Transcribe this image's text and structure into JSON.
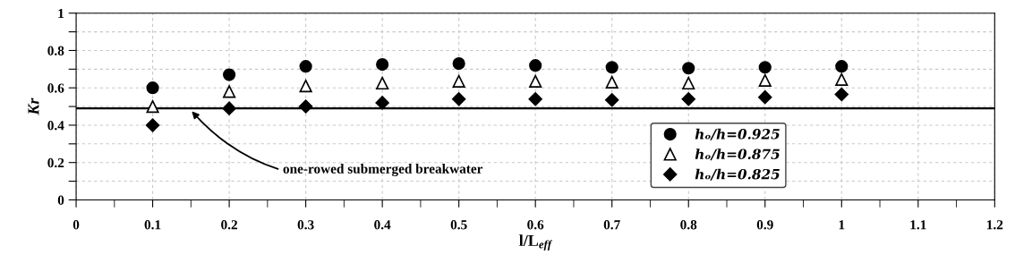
{
  "chart_data": {
    "type": "scatter",
    "xlabel": "l/L$_{eff}$",
    "ylabel": "Kr",
    "x": [
      0.1,
      0.2,
      0.3,
      0.4,
      0.5,
      0.6,
      0.7,
      0.8,
      0.9,
      1.0
    ],
    "series": [
      {
        "name": "hₒ/h=0.925",
        "color": "#000000",
        "marker": "circle",
        "values": [
          0.6,
          0.67,
          0.715,
          0.725,
          0.73,
          0.72,
          0.71,
          0.705,
          0.71,
          0.715
        ]
      },
      {
        "name": "hₒ/h=0.875",
        "color": "#000000",
        "marker": "triangle",
        "values": [
          0.5,
          0.58,
          0.61,
          0.625,
          0.635,
          0.635,
          0.63,
          0.625,
          0.64,
          0.645
        ]
      },
      {
        "name": "hₒ/h=0.825",
        "color": "#000000",
        "marker": "diamond",
        "values": [
          0.4,
          0.49,
          0.5,
          0.52,
          0.54,
          0.54,
          0.535,
          0.54,
          0.55,
          0.565
        ]
      }
    ],
    "xlim": [
      0,
      1.2
    ],
    "xticks": [
      0,
      0.1,
      0.2,
      0.3,
      0.4,
      0.5,
      0.6,
      0.7,
      0.8,
      0.9,
      1,
      1.1,
      1.2
    ],
    "ylim": [
      0,
      1
    ],
    "yticks": [
      0,
      {
        "value": 0.1,
        "label": null
      },
      0.2,
      {
        "value": 0.3,
        "label": null
      },
      0.4,
      {
        "value": 0.5,
        "label": null
      },
      0.6,
      {
        "value": 0.7,
        "label": null
      },
      0.8,
      {
        "value": 0.9,
        "label": null
      },
      1
    ],
    "ref_lines": [
      {
        "axis": "y",
        "value": 0.49,
        "color": "#000000",
        "line_style": "solid"
      }
    ],
    "annotations": [
      {
        "text": "one-rowed submerged breakwater",
        "x": 0.15,
        "y": 0.48
      }
    ],
    "grid": true,
    "legend": "bottom right"
  }
}
